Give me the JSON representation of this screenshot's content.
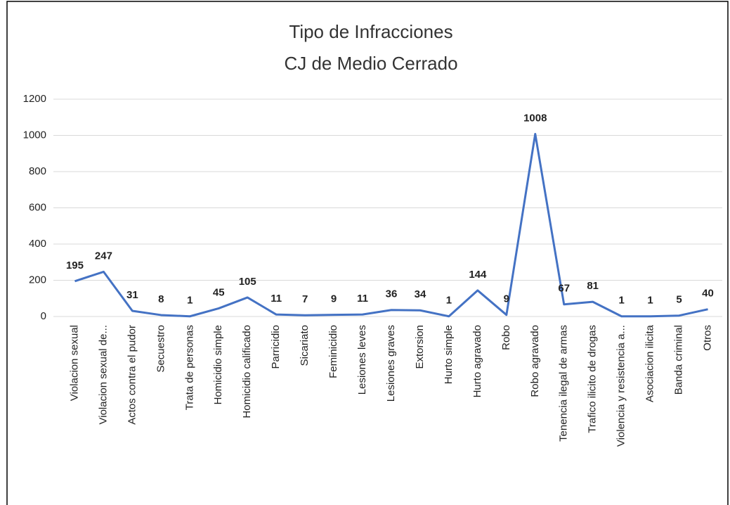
{
  "chart_data": {
    "type": "line",
    "title": "Tipo de Infracciones",
    "subtitle": "CJ de Medio Cerrado",
    "categories": [
      "Violacion sexual",
      "Violacion sexual de...",
      "Actos contra el pudor",
      "Secuestro",
      "Trata de personas",
      "Homicidio simple",
      "Homicidio calificado",
      "Parricidio",
      "Sicariato",
      "Feminicidio",
      "Lesiones leves",
      "Lesiones graves",
      "Extorsion",
      "Hurto simple",
      "Hurto agravado",
      "Robo",
      "Robo agravado",
      "Tenencia ilegal de armas",
      "Trafico ilicito de drogas",
      "Violencia y resistencia a...",
      "Asociacion ilicita",
      "Banda criminal",
      "Otros"
    ],
    "series": [
      {
        "name": "Tipo de Infracciones",
        "color": "#4472c4",
        "values": [
          195,
          247,
          31,
          8,
          1,
          45,
          105,
          11,
          7,
          9,
          11,
          36,
          34,
          1,
          144,
          9,
          1008,
          67,
          81,
          1,
          1,
          5,
          40
        ]
      }
    ],
    "ylim": [
      0,
      1200
    ],
    "yticks": [
      0,
      200,
      400,
      600,
      800,
      1000,
      1200
    ],
    "grid": true
  }
}
